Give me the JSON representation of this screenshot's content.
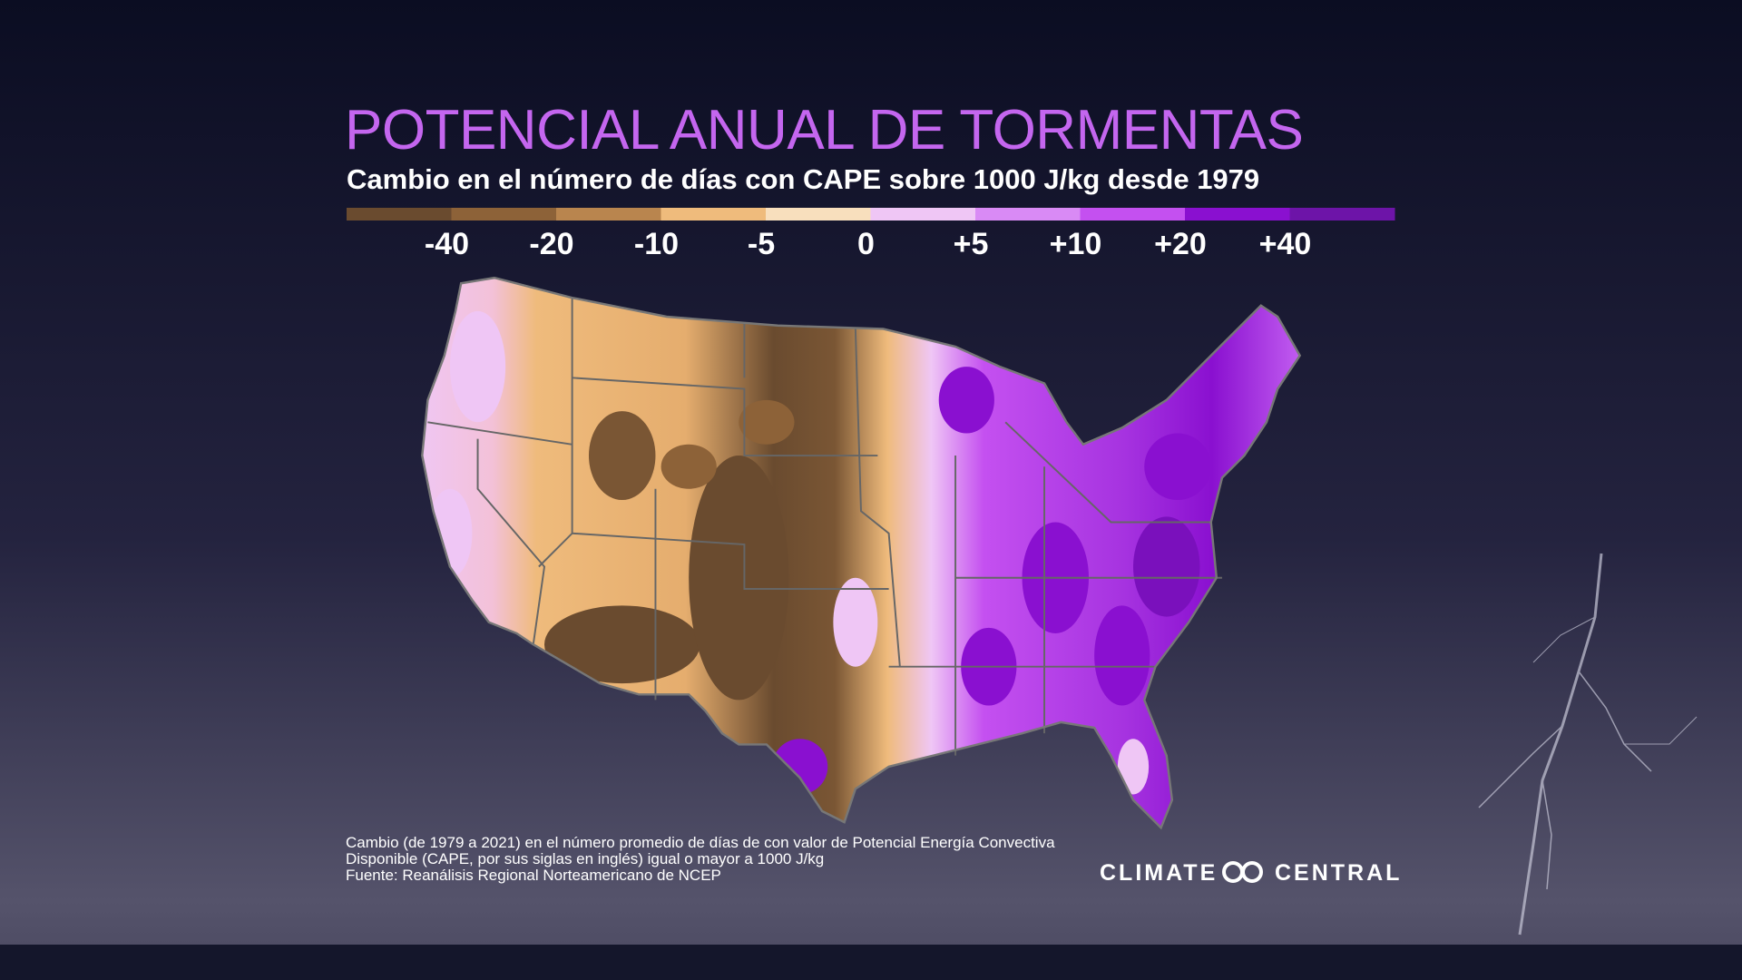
{
  "title": "POTENCIAL ANUAL DE TORMENTAS",
  "subtitle": "Cambio en el número de días con CAPE sobre 1000 J/kg desde 1979",
  "legend": {
    "colors": [
      "#6a4b2f",
      "#8d6238",
      "#b9854e",
      "#efbb7c",
      "#f8dfbd",
      "#efc6f5",
      "#d98af5",
      "#c450f0",
      "#8a10d0",
      "#6d14a8"
    ],
    "labels": [
      "-40",
      "-20",
      "-10",
      "-5",
      "0",
      "+5",
      "+10",
      "+20",
      "+40"
    ]
  },
  "footnote": [
    "Cambio (de 1979 a 2021) en el número promedio de días de con valor de Potencial Energía Convectiva",
    "Disponible (CAPE, por sus siglas en inglés) igual o mayor a 1000 J/kg",
    "Fuente: Reanálisis Regional Norteamericano de NCEP"
  ],
  "logo": [
    "CLIMATE",
    "CENTRAL"
  ]
}
